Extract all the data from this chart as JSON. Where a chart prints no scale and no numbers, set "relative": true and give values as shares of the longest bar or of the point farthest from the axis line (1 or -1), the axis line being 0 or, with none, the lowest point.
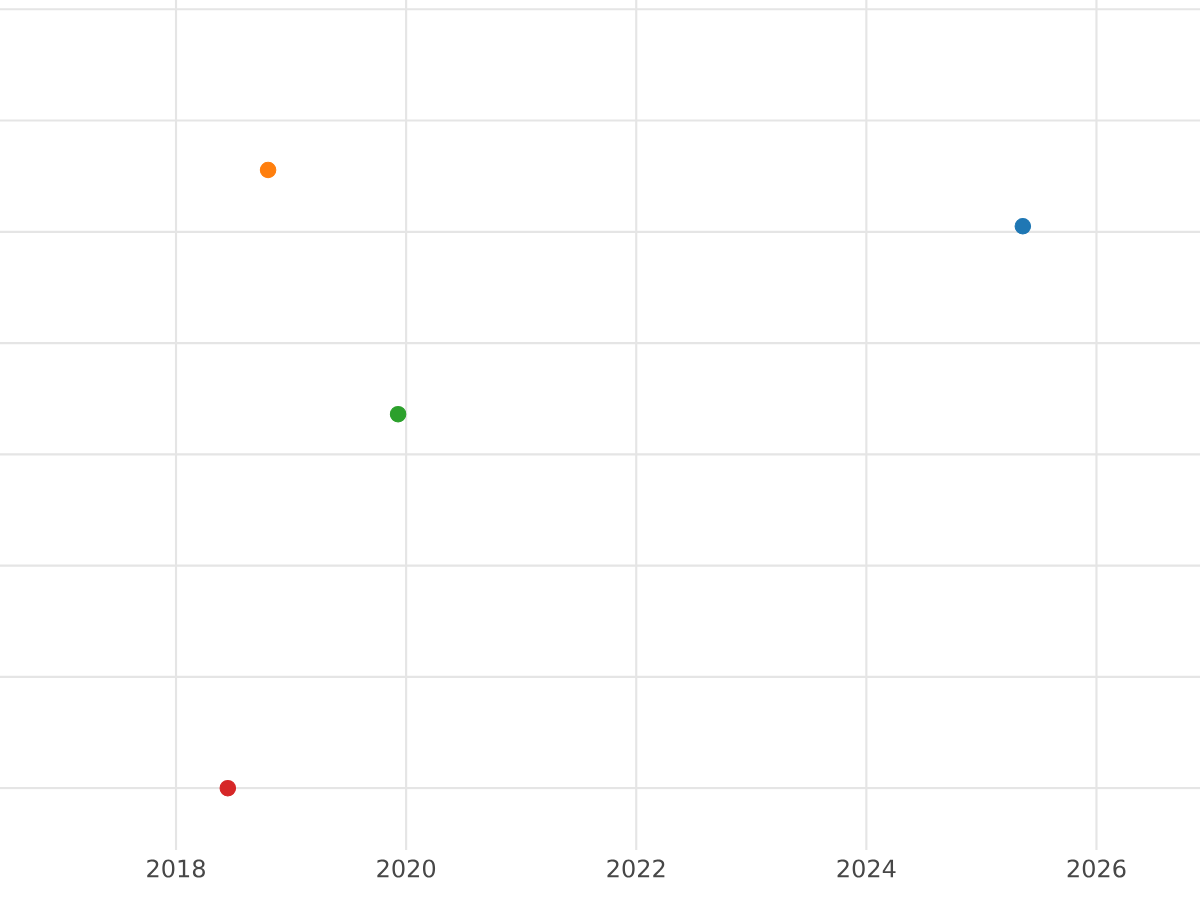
{
  "chart_data": {
    "type": "scatter",
    "relative": true,
    "x": [
      2025.36,
      2018.8,
      2019.93,
      2018.45
    ],
    "values": [
      0.909,
      1,
      0.605,
      0
    ],
    "colors": [
      "#1f77b4",
      "#ff7f0e",
      "#2ca02c",
      "#d62728"
    ],
    "xlim": [
      2016.47,
      2026.9
    ],
    "xticks": [
      2018,
      2020,
      2022,
      2024,
      2026
    ],
    "grid": true,
    "marker": "circle",
    "tick_labels": "x"
  }
}
